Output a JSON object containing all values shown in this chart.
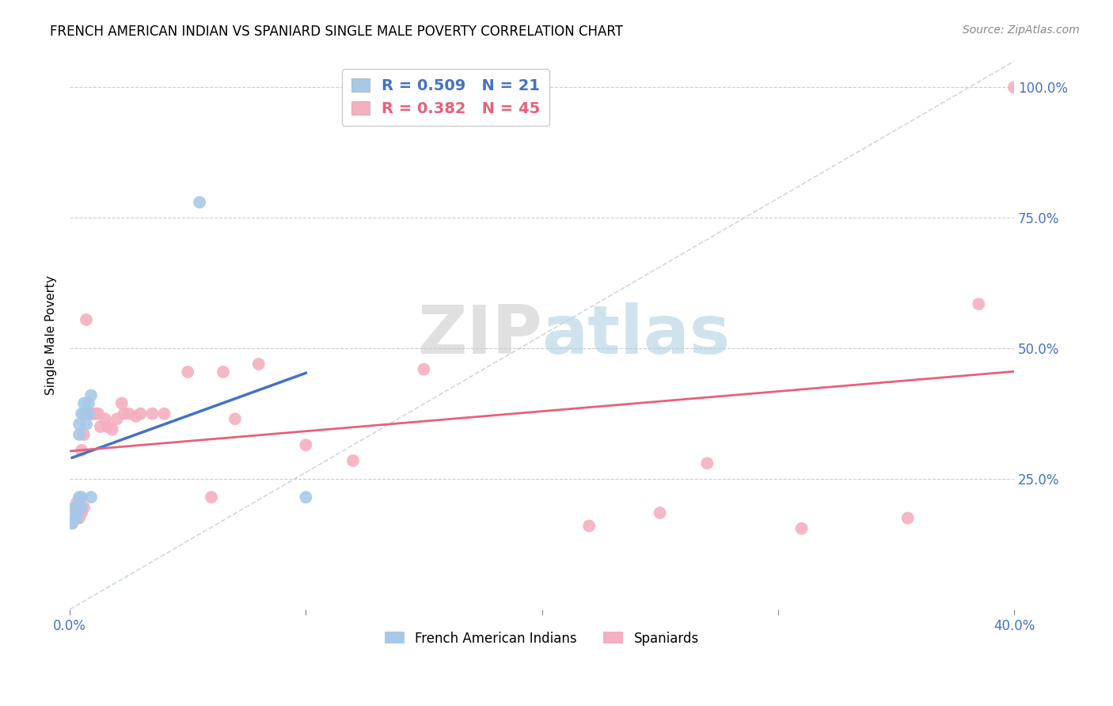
{
  "title": "FRENCH AMERICAN INDIAN VS SPANIARD SINGLE MALE POVERTY CORRELATION CHART",
  "source": "Source: ZipAtlas.com",
  "ylabel": "Single Male Poverty",
  "xlim": [
    0.0,
    0.4
  ],
  "ylim": [
    0.0,
    1.05
  ],
  "blue_label": "French American Indians",
  "pink_label": "Spaniards",
  "blue_R": 0.509,
  "blue_N": 21,
  "pink_R": 0.382,
  "pink_N": 45,
  "blue_color": "#a8c8e8",
  "pink_color": "#f4afc0",
  "blue_line_color": "#4472c4",
  "pink_line_color": "#e8607a",
  "diagonal_color": "#c0cfe0",
  "blue_x": [
    0.001,
    0.002,
    0.002,
    0.003,
    0.003,
    0.004,
    0.004,
    0.004,
    0.005,
    0.005,
    0.005,
    0.006,
    0.006,
    0.007,
    0.007,
    0.008,
    0.008,
    0.009,
    0.009,
    0.055,
    0.1
  ],
  "blue_y": [
    0.165,
    0.175,
    0.195,
    0.175,
    0.195,
    0.215,
    0.335,
    0.355,
    0.375,
    0.195,
    0.215,
    0.375,
    0.395,
    0.355,
    0.375,
    0.375,
    0.395,
    0.41,
    0.215,
    0.78,
    0.215
  ],
  "pink_x": [
    0.001,
    0.001,
    0.002,
    0.002,
    0.003,
    0.003,
    0.004,
    0.004,
    0.005,
    0.005,
    0.006,
    0.006,
    0.007,
    0.008,
    0.009,
    0.01,
    0.011,
    0.012,
    0.013,
    0.015,
    0.016,
    0.018,
    0.02,
    0.022,
    0.023,
    0.025,
    0.028,
    0.03,
    0.035,
    0.04,
    0.05,
    0.06,
    0.065,
    0.07,
    0.08,
    0.1,
    0.12,
    0.15,
    0.22,
    0.25,
    0.27,
    0.31,
    0.355,
    0.385,
    0.4
  ],
  "pink_y": [
    0.165,
    0.175,
    0.175,
    0.195,
    0.185,
    0.205,
    0.175,
    0.195,
    0.185,
    0.305,
    0.195,
    0.335,
    0.555,
    0.375,
    0.375,
    0.375,
    0.375,
    0.375,
    0.35,
    0.365,
    0.35,
    0.345,
    0.365,
    0.395,
    0.375,
    0.375,
    0.37,
    0.375,
    0.375,
    0.375,
    0.455,
    0.215,
    0.455,
    0.365,
    0.47,
    0.315,
    0.285,
    0.46,
    0.16,
    0.185,
    0.28,
    0.155,
    0.175,
    0.585,
    1.0
  ]
}
